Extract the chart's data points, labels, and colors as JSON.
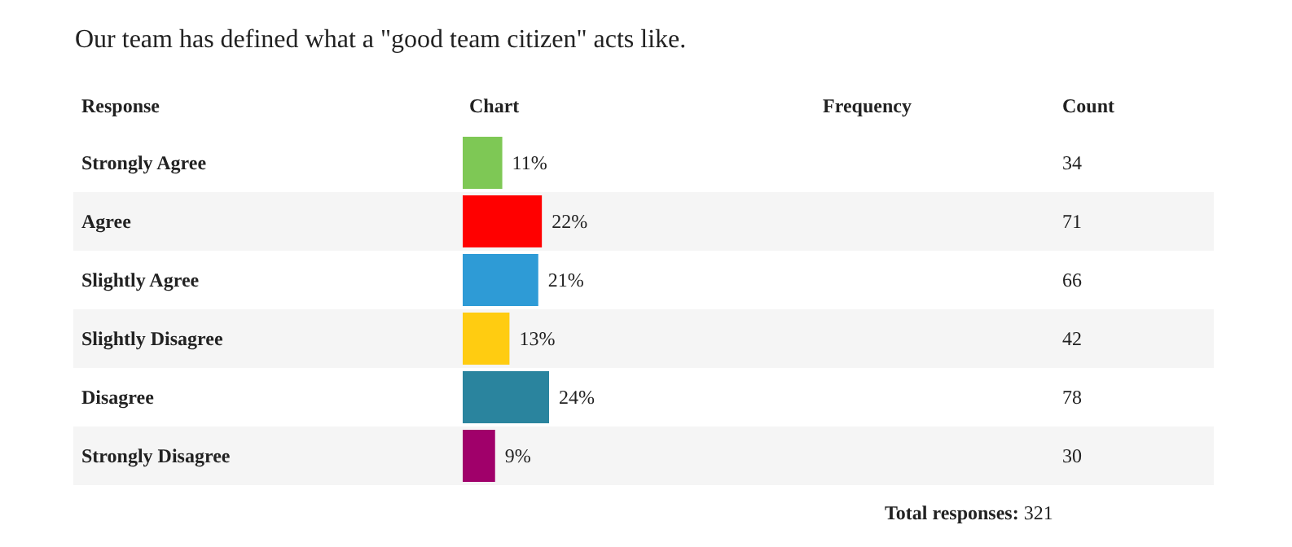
{
  "chart_data": {
    "type": "bar",
    "orientation": "horizontal",
    "title": "Our team has defined what a \"good team citizen\" acts like.",
    "ylabel": "Response",
    "xlabel": "Chart",
    "categories": [
      "Strongly Agree",
      "Agree",
      "Slightly Agree",
      "Slightly Disagree",
      "Disagree",
      "Strongly Disagree"
    ],
    "values": [
      11,
      22,
      21,
      13,
      24,
      9
    ],
    "colors": [
      "#7ec855",
      "#ff0000",
      "#2e9bd6",
      "#ffcc11",
      "#2a849e",
      "#a0006a"
    ],
    "value_labels": [
      "11%",
      "22%",
      "21%",
      "13%",
      "24%",
      "9%"
    ],
    "annotations": [
      "Frequency",
      "Count",
      "34",
      "71",
      "66",
      "42",
      "78",
      "30",
      "Total responses: 321"
    ],
    "tick_labels": "y"
  }
}
